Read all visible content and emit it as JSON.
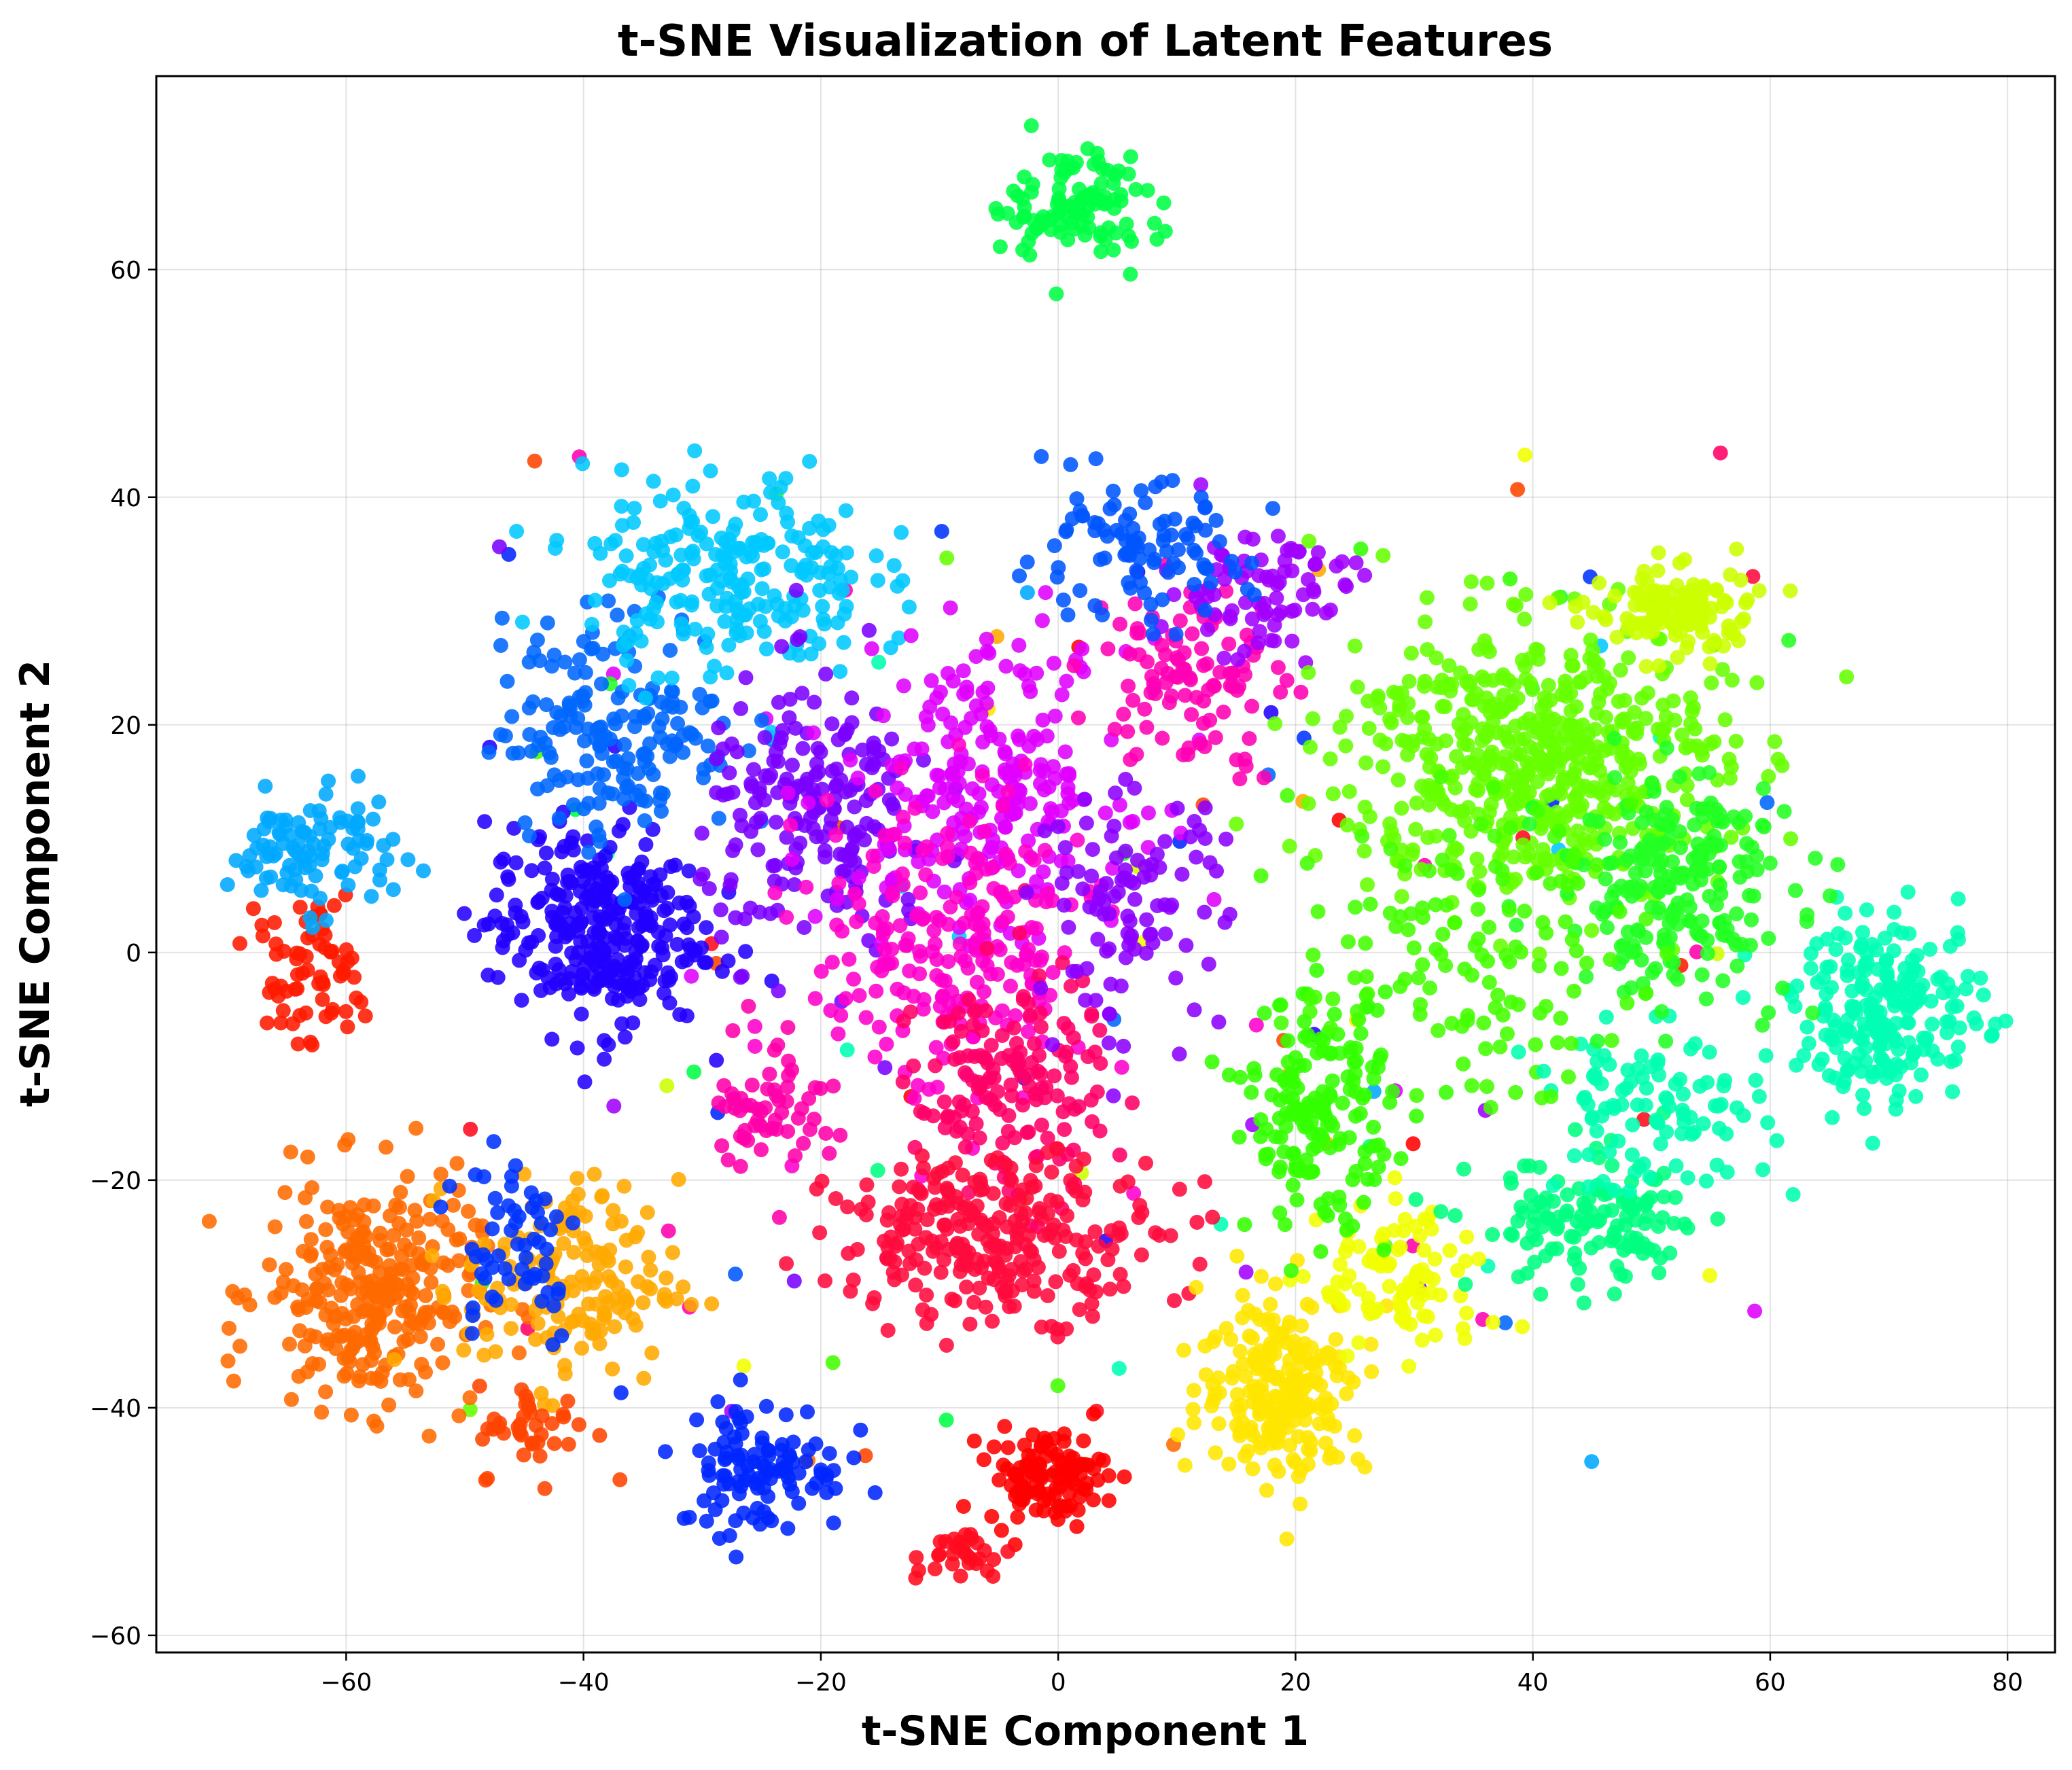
{
  "chart_data": {
    "type": "scatter",
    "title": "t-SNE Visualization of Latent Features",
    "xlabel": "t-SNE Component 1",
    "ylabel": "t-SNE Component 2",
    "xlim": [
      -76,
      84
    ],
    "ylim": [
      -61.5,
      77
    ],
    "xticks": [
      -60,
      -40,
      -20,
      0,
      20,
      40,
      60,
      80
    ],
    "yticks": [
      -60,
      -40,
      -20,
      0,
      20,
      40,
      60
    ],
    "xtick_labels": [
      "−60",
      "−40",
      "−20",
      "0",
      "20",
      "40",
      "60",
      "80"
    ],
    "ytick_labels": [
      "−60",
      "−40",
      "−20",
      "0",
      "20",
      "40",
      "60"
    ],
    "grid": true,
    "legend": "none",
    "colormap": "hsv",
    "clusters": [
      {
        "color": "#00ff44",
        "cx": 2,
        "cy": 66,
        "sx": 3.5,
        "sy": 2.5,
        "n": 110
      },
      {
        "color": "#ff1a00",
        "cx": -63,
        "cy": -2,
        "sx": 2.5,
        "sy": 3,
        "n": 70
      },
      {
        "color": "#00a8ff",
        "cx": -63,
        "cy": 9,
        "sx": 3.5,
        "sy": 2.5,
        "n": 100
      },
      {
        "color": "#ff6a00",
        "cx": -58,
        "cy": -30,
        "sx": 4.5,
        "sy": 5,
        "n": 280
      },
      {
        "color": "#ffaa00",
        "cx": -41,
        "cy": -29,
        "sx": 4.5,
        "sy": 4.5,
        "n": 160
      },
      {
        "color": "#0033ff",
        "cx": -46,
        "cy": -25,
        "sx": 3,
        "sy": 5,
        "n": 60
      },
      {
        "color": "#ff4400",
        "cx": -44,
        "cy": -42,
        "sx": 2.5,
        "sy": 2,
        "n": 40
      },
      {
        "color": "#0026ff",
        "cx": -25,
        "cy": -45,
        "sx": 3.5,
        "sy": 3,
        "n": 110
      },
      {
        "color": "#ff0000",
        "cx": -1,
        "cy": -46,
        "sx": 2.5,
        "sy": 2,
        "n": 110
      },
      {
        "color": "#ff0a1e",
        "cx": -8,
        "cy": -53,
        "sx": 2,
        "sy": 1.2,
        "n": 30
      },
      {
        "color": "#2200ff",
        "cx": -39,
        "cy": 2,
        "sx": 4.5,
        "sy": 4.5,
        "n": 300
      },
      {
        "color": "#0066ff",
        "cx": -37,
        "cy": 20,
        "sx": 5,
        "sy": 5,
        "n": 180
      },
      {
        "color": "#00c8ff",
        "cx": -28,
        "cy": 33,
        "sx": 6,
        "sy": 4.5,
        "n": 230
      },
      {
        "color": "#7a00ff",
        "cx": -20,
        "cy": 12,
        "sx": 5,
        "sy": 6,
        "n": 200
      },
      {
        "color": "#e000ff",
        "cx": -6,
        "cy": 15,
        "sx": 6,
        "sy": 6,
        "n": 230
      },
      {
        "color": "#ff00cc",
        "cx": -9,
        "cy": 0,
        "sx": 6,
        "sy": 7,
        "n": 220
      },
      {
        "color": "#ff0066",
        "cx": -4,
        "cy": -12,
        "sx": 4,
        "sy": 5,
        "n": 150
      },
      {
        "color": "#ff0a3c",
        "cx": -5,
        "cy": -25,
        "sx": 7,
        "sy": 3.5,
        "n": 270
      },
      {
        "color": "#ff00aa",
        "cx": -24,
        "cy": -13,
        "sx": 2.5,
        "sy": 3.5,
        "n": 60
      },
      {
        "color": "#ff00b4",
        "cx": 11,
        "cy": 24,
        "sx": 4,
        "sy": 4,
        "n": 100
      },
      {
        "color": "#a000ff",
        "cx": 17,
        "cy": 32,
        "sx": 4,
        "sy": 3,
        "n": 80
      },
      {
        "color": "#0055ff",
        "cx": 6,
        "cy": 35,
        "sx": 5,
        "sy": 3,
        "n": 100
      },
      {
        "color": "#8c00ff",
        "cx": 6,
        "cy": 4,
        "sx": 4,
        "sy": 5,
        "n": 100
      },
      {
        "color": "#ffe600",
        "cx": 19,
        "cy": -38,
        "sx": 3.5,
        "sy": 4,
        "n": 230
      },
      {
        "color": "#f0ff00",
        "cx": 29,
        "cy": -29,
        "sx": 3.5,
        "sy": 3.5,
        "n": 90
      },
      {
        "color": "#33ff00",
        "cx": 22,
        "cy": -14,
        "sx": 3,
        "sy": 5,
        "n": 170
      },
      {
        "color": "#00ff80",
        "cx": 45,
        "cy": -24,
        "sx": 5,
        "sy": 3,
        "n": 130
      },
      {
        "color": "#00ffb0",
        "cx": 50,
        "cy": -14,
        "sx": 5,
        "sy": 3.5,
        "n": 100
      },
      {
        "color": "#00ffb4",
        "cx": 70,
        "cy": -5,
        "sx": 4,
        "sy": 4,
        "n": 210
      },
      {
        "color": "#66ff00",
        "cx": 40,
        "cy": 17,
        "sx": 8,
        "sy": 6,
        "n": 550
      },
      {
        "color": "#ccff00",
        "cx": 52,
        "cy": 30,
        "sx": 3.5,
        "sy": 2,
        "n": 120
      },
      {
        "color": "#22ff22",
        "cx": 52,
        "cy": 6,
        "sx": 5,
        "sy": 5,
        "n": 220
      },
      {
        "color": "#44ff00",
        "cx": 34,
        "cy": 0,
        "sx": 7,
        "sy": 6,
        "n": 130
      }
    ],
    "noise": {
      "n": 130,
      "xlim": [
        -50,
        60
      ],
      "ylim": [
        -45,
        45
      ]
    }
  }
}
